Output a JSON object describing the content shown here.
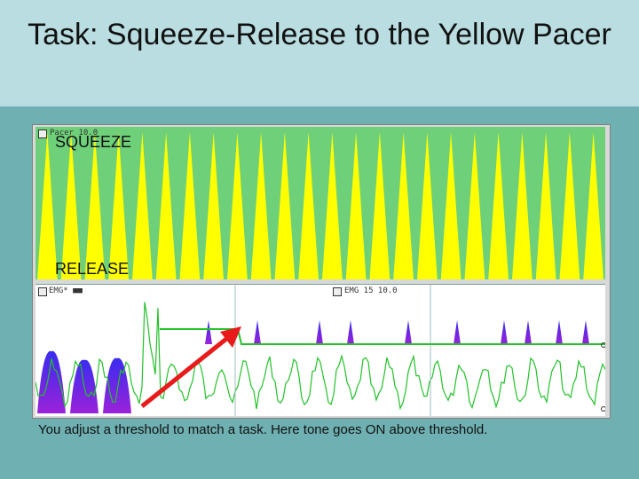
{
  "title": "Task: Squeeze-Release to the Yellow Pacer",
  "pacer_label": "Pacer 10.0",
  "squeeze_label": "SQUEEZE",
  "release_label": "RELEASE",
  "emg_label": "EMG* ■■",
  "emg_label2": "EMG 15 10.0",
  "caption": "You adjust a threshold to match a task. Here tone goes ON above threshold.",
  "colors": {
    "pacer_yellow": "#ffff00",
    "pacer_bg": "#6fd07a",
    "trace_green": "#22c22a",
    "emg_blue": "#3a2cf0",
    "emg_purple": "#9a22d8",
    "arrow_red": "#e81a1a"
  }
}
